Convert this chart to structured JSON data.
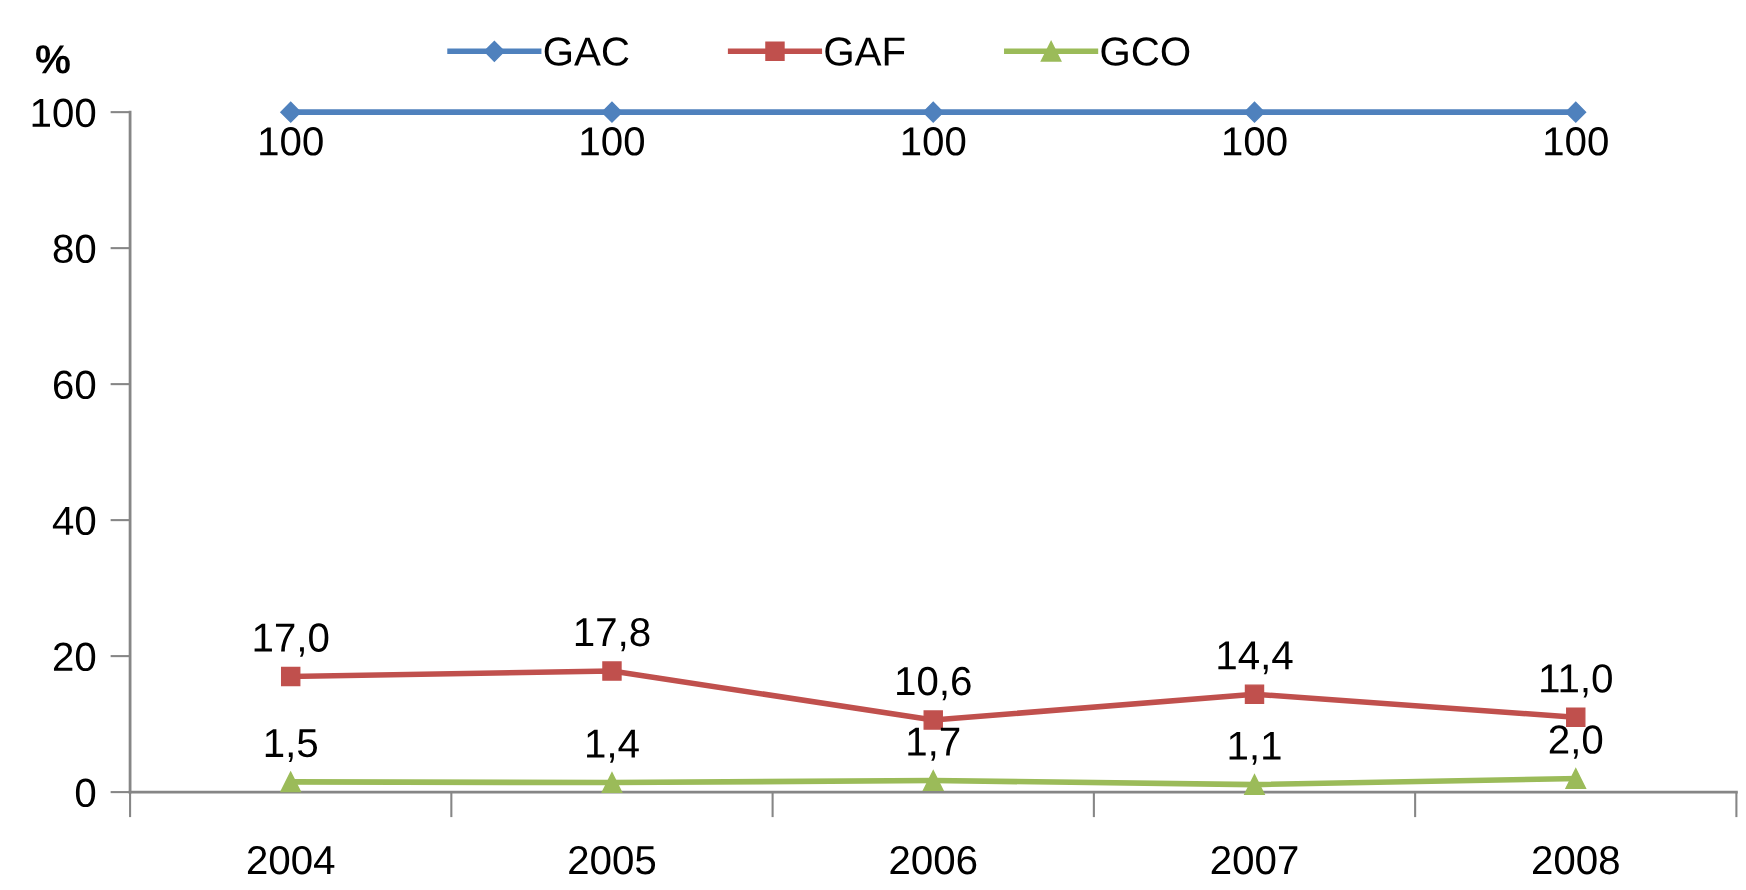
{
  "chart_data": {
    "type": "line",
    "ylabel": "%",
    "categories": [
      "2004",
      "2005",
      "2006",
      "2007",
      "2008"
    ],
    "series": [
      {
        "name": "GAC",
        "color": "#4f81bd",
        "marker": "diamond",
        "values": [
          100,
          100,
          100,
          100,
          100
        ],
        "value_labels": [
          "100",
          "100",
          "100",
          "100",
          "100"
        ]
      },
      {
        "name": "GAF",
        "color": "#c0504d",
        "marker": "square",
        "values": [
          17.0,
          17.8,
          10.6,
          14.4,
          11.0
        ],
        "value_labels": [
          "17,0",
          "17,8",
          "10,6",
          "14,4",
          "11,0"
        ]
      },
      {
        "name": "GCO",
        "color": "#9bbb59",
        "marker": "triangle",
        "values": [
          1.5,
          1.4,
          1.7,
          1.1,
          2.0
        ],
        "value_labels": [
          "1,5",
          "1,4",
          "1,7",
          "1,1",
          "2,0"
        ]
      }
    ],
    "ylim": [
      0,
      100
    ],
    "yticks": [
      0,
      20,
      40,
      60,
      80,
      100
    ],
    "grid": false,
    "legend": "top",
    "line_style": "solid"
  }
}
